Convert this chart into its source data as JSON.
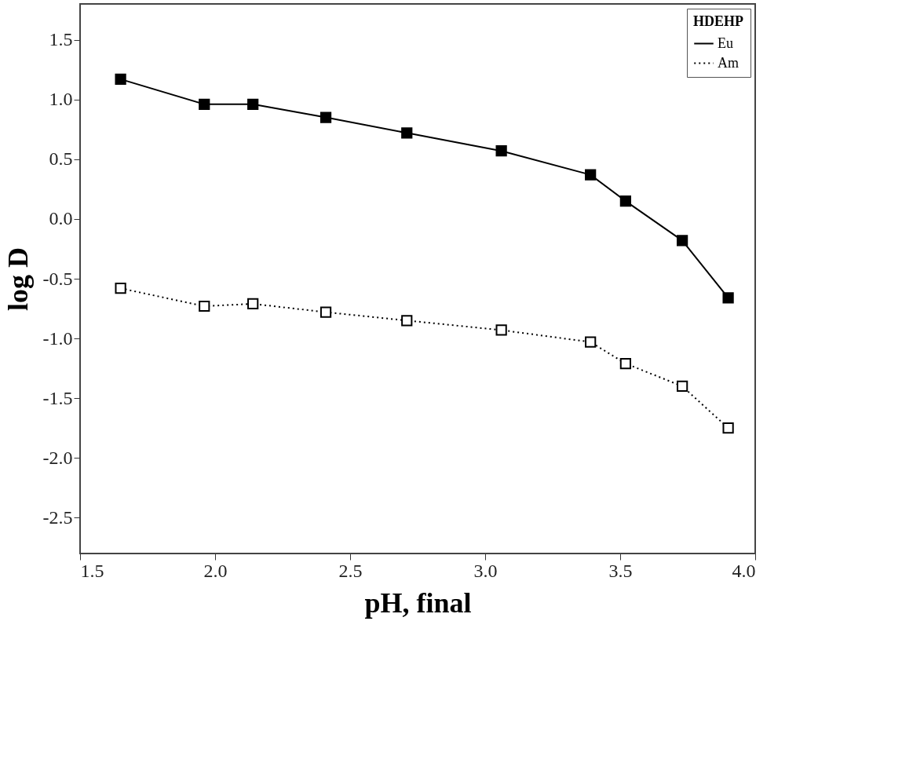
{
  "chart_data": {
    "type": "line",
    "xlabel": "pH, final",
    "ylabel": "log D",
    "legend_title": "HDEHP",
    "x": [
      1.65,
      1.96,
      2.14,
      2.41,
      2.71,
      3.06,
      3.39,
      3.52,
      3.73,
      3.9
    ],
    "series": [
      {
        "name": "Eu",
        "color": "#000000",
        "line_style": "solid",
        "values": [
          1.17,
          0.96,
          0.96,
          0.85,
          0.72,
          0.57,
          0.37,
          0.15,
          -0.18,
          -0.66
        ]
      },
      {
        "name": "Am",
        "color": "#000000",
        "line_style": "dotted",
        "values": [
          -0.58,
          -0.73,
          -0.71,
          -0.78,
          -0.85,
          -0.93,
          -1.03,
          -1.21,
          -1.4,
          -1.75
        ]
      }
    ],
    "marker": "square",
    "xlim": [
      1.5,
      4.0
    ],
    "xticks": [
      1.5,
      {
        "value": 2,
        "label": "2.0"
      },
      2.5,
      {
        "value": 3,
        "label": "3.0"
      },
      3.5,
      {
        "value": 4,
        "label": "4.0"
      }
    ],
    "ylim": [
      -2.8,
      1.8
    ],
    "yticks": [
      -2.5,
      {
        "value": -2,
        "label": "-2.0"
      },
      -1.5,
      {
        "value": -1,
        "label": "-1.0"
      },
      -0.5,
      {
        "value": 0,
        "label": "0.0"
      },
      0.5,
      {
        "value": 1,
        "label": "1.0"
      },
      1.5
    ],
    "grid": false,
    "legend": "top right"
  }
}
